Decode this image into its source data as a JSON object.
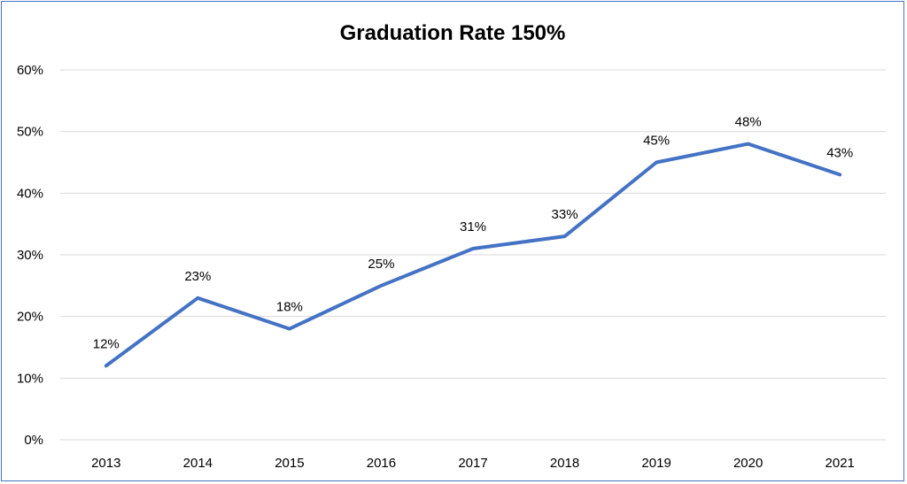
{
  "chart_data": {
    "type": "line",
    "title": "Graduation Rate 150%",
    "xlabel": "",
    "ylabel": "",
    "categories": [
      "2013",
      "2014",
      "2015",
      "2016",
      "2017",
      "2018",
      "2019",
      "2020",
      "2021"
    ],
    "series": [
      {
        "values": [
          12,
          23,
          18,
          25,
          31,
          33,
          45,
          48,
          43
        ],
        "data_labels": [
          "12%",
          "23%",
          "18%",
          "25%",
          "31%",
          "33%",
          "45%",
          "48%",
          "43%"
        ],
        "color": "#4472c4"
      }
    ],
    "ylim": [
      0,
      60
    ],
    "y_ticks": [
      0,
      10,
      20,
      30,
      40,
      50,
      60
    ],
    "y_tick_labels": [
      "0%",
      "10%",
      "20%",
      "30%",
      "40%",
      "50%",
      "60%"
    ],
    "grid": true,
    "legend": "none"
  },
  "colors": {
    "frame_border": "#4472c4",
    "gridline": "#d9d9d9",
    "line": "#4472c4"
  }
}
